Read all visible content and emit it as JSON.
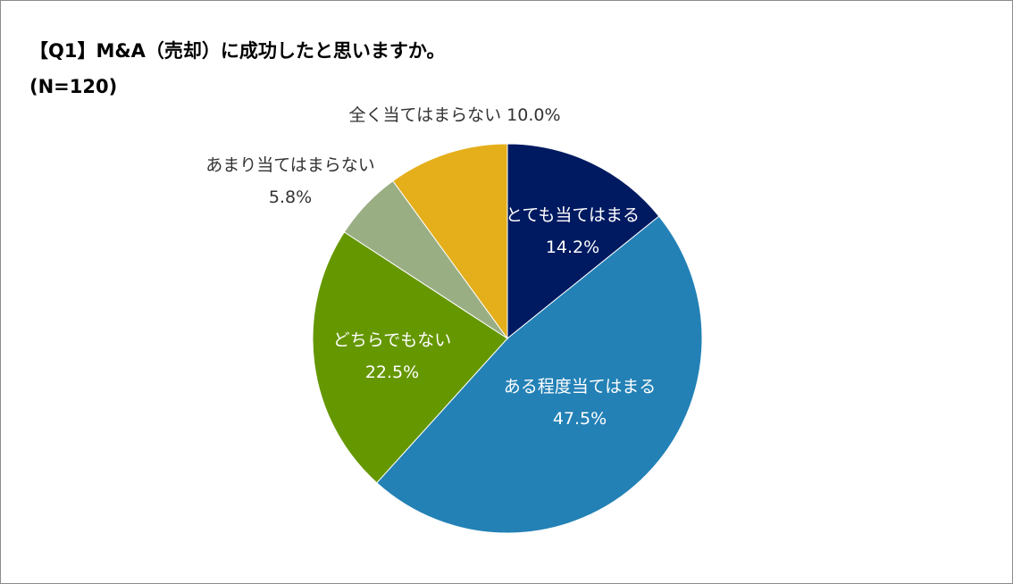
{
  "chart_data": {
    "type": "pie",
    "title": "【Q1】M&A（売却）に成功したと思いますか。",
    "subtitle": "(N=120)",
    "slices": [
      {
        "label": "とても当てはまる",
        "value": 14.2,
        "value_label": "14.2%",
        "color": "#001A61",
        "text_color": "#ffffff"
      },
      {
        "label": "ある程度当てはまる",
        "value": 47.5,
        "value_label": "47.5%",
        "color": "#2381B6",
        "text_color": "#ffffff"
      },
      {
        "label": "どちらでもない",
        "value": 22.5,
        "value_label": "22.5%",
        "color": "#659700",
        "text_color": "#ffffff"
      },
      {
        "label": "あまり当てはまらない",
        "value": 5.8,
        "value_label": "5.8%",
        "color": "#9AAE84",
        "text_color": "#333333"
      },
      {
        "label": "全く当てはまらない",
        "value": 10.0,
        "value_label": "10.0%",
        "color": "#E4AF1B",
        "text_color": "#333333"
      }
    ]
  }
}
